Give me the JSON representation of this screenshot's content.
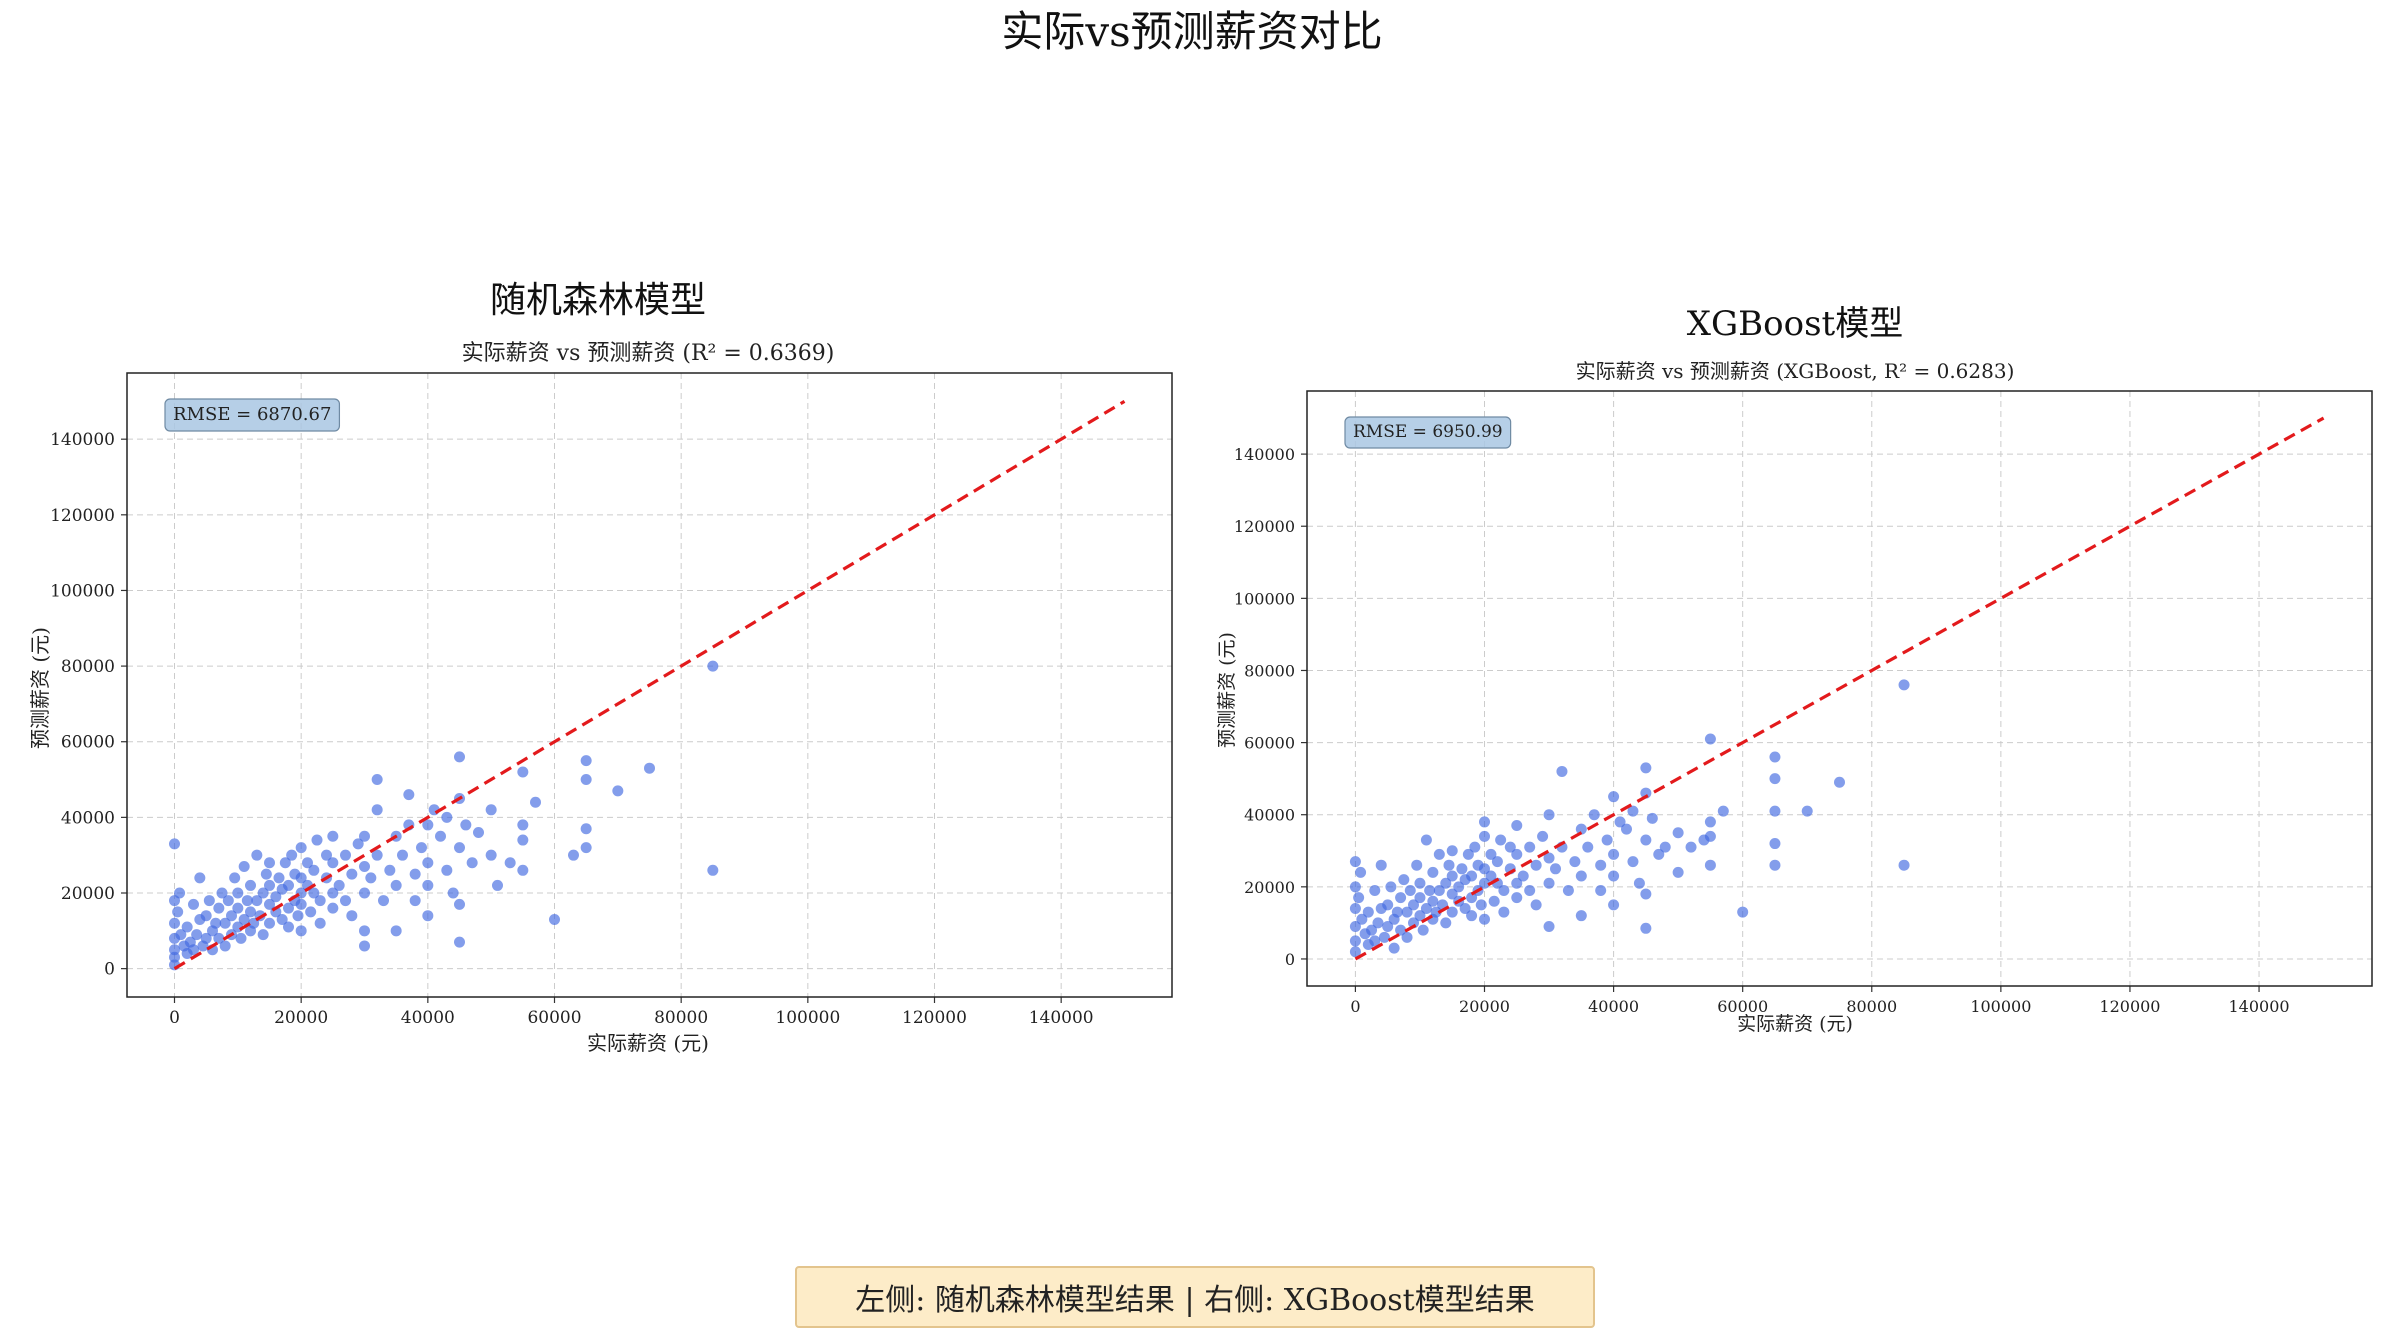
{
  "figure": {
    "title": "实际vs预测薪资对比",
    "footer": "左侧: 随机森林模型结果 | 右侧: XGBoost模型结果"
  },
  "chart_data": [
    {
      "type": "scatter",
      "title": "随机森林模型",
      "subtitle": "实际薪资 vs 预测薪资 (R² = 0.6369)",
      "xlabel": "实际薪资 (元)",
      "ylabel": "预测薪资 (元)",
      "xlim": [
        -7500,
        157500
      ],
      "ylim": [
        -7500,
        157500
      ],
      "xticks": [
        0,
        20000,
        40000,
        60000,
        80000,
        100000,
        120000,
        140000
      ],
      "yticks": [
        0,
        20000,
        40000,
        60000,
        80000,
        100000,
        120000,
        140000
      ],
      "grid": true,
      "annotation": "RMSE = 6870.67",
      "point_color": "#4169e1",
      "reference_line": {
        "from": [
          0,
          0
        ],
        "to": [
          150000,
          150000
        ],
        "color": "#e31a1c",
        "style": "dashed"
      },
      "points": [
        [
          0,
          33000
        ],
        [
          0,
          18000
        ],
        [
          0,
          12000
        ],
        [
          0,
          8000
        ],
        [
          0,
          5000
        ],
        [
          0,
          3000
        ],
        [
          0,
          1000
        ],
        [
          500,
          15000
        ],
        [
          800,
          20000
        ],
        [
          1000,
          9000
        ],
        [
          1500,
          6000
        ],
        [
          2000,
          4000
        ],
        [
          2000,
          11000
        ],
        [
          2500,
          7000
        ],
        [
          3000,
          5000
        ],
        [
          3000,
          17000
        ],
        [
          3500,
          9000
        ],
        [
          4000,
          24000
        ],
        [
          4000,
          13000
        ],
        [
          4500,
          6000
        ],
        [
          5000,
          8000
        ],
        [
          5000,
          14000
        ],
        [
          5500,
          18000
        ],
        [
          6000,
          10000
        ],
        [
          6000,
          5000
        ],
        [
          6500,
          12000
        ],
        [
          7000,
          16000
        ],
        [
          7000,
          8000
        ],
        [
          7500,
          20000
        ],
        [
          8000,
          12000
        ],
        [
          8000,
          6000
        ],
        [
          8500,
          18000
        ],
        [
          9000,
          14000
        ],
        [
          9000,
          9000
        ],
        [
          9500,
          24000
        ],
        [
          10000,
          16000
        ],
        [
          10000,
          11000
        ],
        [
          10000,
          20000
        ],
        [
          10500,
          8000
        ],
        [
          11000,
          13000
        ],
        [
          11000,
          27000
        ],
        [
          11500,
          18000
        ],
        [
          12000,
          15000
        ],
        [
          12000,
          10000
        ],
        [
          12000,
          22000
        ],
        [
          12500,
          12000
        ],
        [
          13000,
          18000
        ],
        [
          13000,
          30000
        ],
        [
          13500,
          14000
        ],
        [
          14000,
          20000
        ],
        [
          14000,
          9000
        ],
        [
          14500,
          25000
        ],
        [
          15000,
          17000
        ],
        [
          15000,
          12000
        ],
        [
          15000,
          22000
        ],
        [
          15000,
          28000
        ],
        [
          16000,
          15000
        ],
        [
          16000,
          19000
        ],
        [
          16500,
          24000
        ],
        [
          17000,
          13000
        ],
        [
          17000,
          21000
        ],
        [
          17500,
          28000
        ],
        [
          18000,
          16000
        ],
        [
          18000,
          11000
        ],
        [
          18000,
          22000
        ],
        [
          18500,
          30000
        ],
        [
          19000,
          18000
        ],
        [
          19000,
          25000
        ],
        [
          19500,
          14000
        ],
        [
          20000,
          20000
        ],
        [
          20000,
          10000
        ],
        [
          20000,
          24000
        ],
        [
          20000,
          32000
        ],
        [
          20000,
          17000
        ],
        [
          21000,
          22000
        ],
        [
          21000,
          28000
        ],
        [
          21500,
          15000
        ],
        [
          22000,
          20000
        ],
        [
          22000,
          26000
        ],
        [
          22500,
          34000
        ],
        [
          23000,
          18000
        ],
        [
          23000,
          12000
        ],
        [
          24000,
          24000
        ],
        [
          24000,
          30000
        ],
        [
          25000,
          20000
        ],
        [
          25000,
          16000
        ],
        [
          25000,
          28000
        ],
        [
          25000,
          35000
        ],
        [
          26000,
          22000
        ],
        [
          27000,
          18000
        ],
        [
          27000,
          30000
        ],
        [
          28000,
          25000
        ],
        [
          28000,
          14000
        ],
        [
          29000,
          33000
        ],
        [
          30000,
          20000
        ],
        [
          30000,
          27000
        ],
        [
          30000,
          10000
        ],
        [
          30000,
          35000
        ],
        [
          30000,
          6000
        ],
        [
          31000,
          24000
        ],
        [
          32000,
          42000
        ],
        [
          32000,
          30000
        ],
        [
          32000,
          50000
        ],
        [
          33000,
          18000
        ],
        [
          34000,
          26000
        ],
        [
          35000,
          35000
        ],
        [
          35000,
          10000
        ],
        [
          35000,
          22000
        ],
        [
          36000,
          30000
        ],
        [
          37000,
          46000
        ],
        [
          37000,
          38000
        ],
        [
          38000,
          25000
        ],
        [
          38000,
          18000
        ],
        [
          39000,
          32000
        ],
        [
          40000,
          28000
        ],
        [
          40000,
          22000
        ],
        [
          40000,
          38000
        ],
        [
          40000,
          14000
        ],
        [
          41000,
          42000
        ],
        [
          42000,
          35000
        ],
        [
          43000,
          26000
        ],
        [
          43000,
          40000
        ],
        [
          44000,
          20000
        ],
        [
          45000,
          56000
        ],
        [
          45000,
          45000
        ],
        [
          45000,
          32000
        ],
        [
          45000,
          17000
        ],
        [
          45000,
          7000
        ],
        [
          46000,
          38000
        ],
        [
          47000,
          28000
        ],
        [
          48000,
          36000
        ],
        [
          50000,
          42000
        ],
        [
          50000,
          30000
        ],
        [
          51000,
          22000
        ],
        [
          53000,
          28000
        ],
        [
          55000,
          52000
        ],
        [
          55000,
          38000
        ],
        [
          55000,
          34000
        ],
        [
          55000,
          26000
        ],
        [
          57000,
          44000
        ],
        [
          60000,
          13000
        ],
        [
          63000,
          30000
        ],
        [
          65000,
          55000
        ],
        [
          65000,
          50000
        ],
        [
          65000,
          37000
        ],
        [
          65000,
          32000
        ],
        [
          70000,
          47000
        ],
        [
          75000,
          53000
        ],
        [
          85000,
          80000
        ],
        [
          85000,
          26000
        ]
      ]
    },
    {
      "type": "scatter",
      "title": "XGBoost模型",
      "subtitle": "实际薪资 vs 预测薪资 (XGBoost, R² = 0.6283)",
      "xlabel": "实际薪资 (元)",
      "ylabel": "预测薪资 (元)",
      "xlim": [
        -7500,
        157500
      ],
      "ylim": [
        -7500,
        157500
      ],
      "xticks": [
        0,
        20000,
        40000,
        60000,
        80000,
        100000,
        120000,
        140000
      ],
      "yticks": [
        0,
        20000,
        40000,
        60000,
        80000,
        100000,
        120000,
        140000
      ],
      "grid": true,
      "annotation": "RMSE = 6950.99",
      "point_color": "#4169e1",
      "reference_line": {
        "from": [
          0,
          0
        ],
        "to": [
          150000,
          150000
        ],
        "color": "#e31a1c",
        "style": "dashed"
      },
      "points": [
        [
          0,
          27000
        ],
        [
          0,
          20000
        ],
        [
          0,
          14000
        ],
        [
          0,
          9000
        ],
        [
          0,
          5000
        ],
        [
          0,
          2000
        ],
        [
          500,
          17000
        ],
        [
          800,
          24000
        ],
        [
          1000,
          11000
        ],
        [
          1500,
          7000
        ],
        [
          2000,
          4000
        ],
        [
          2000,
          13000
        ],
        [
          2500,
          8000
        ],
        [
          3000,
          5000
        ],
        [
          3000,
          19000
        ],
        [
          3500,
          10000
        ],
        [
          4000,
          26000
        ],
        [
          4000,
          14000
        ],
        [
          4500,
          6000
        ],
        [
          5000,
          9000
        ],
        [
          5000,
          15000
        ],
        [
          5500,
          20000
        ],
        [
          6000,
          11000
        ],
        [
          6000,
          3000
        ],
        [
          6500,
          13000
        ],
        [
          7000,
          17000
        ],
        [
          7000,
          8000
        ],
        [
          7500,
          22000
        ],
        [
          8000,
          13000
        ],
        [
          8000,
          6000
        ],
        [
          8500,
          19000
        ],
        [
          9000,
          15000
        ],
        [
          9000,
          10000
        ],
        [
          9500,
          26000
        ],
        [
          10000,
          17000
        ],
        [
          10000,
          12000
        ],
        [
          10000,
          21000
        ],
        [
          10500,
          8000
        ],
        [
          11000,
          14000
        ],
        [
          11000,
          33000
        ],
        [
          11500,
          19000
        ],
        [
          12000,
          16000
        ],
        [
          12000,
          11000
        ],
        [
          12000,
          24000
        ],
        [
          12500,
          13000
        ],
        [
          13000,
          19000
        ],
        [
          13000,
          29000
        ],
        [
          13500,
          15000
        ],
        [
          14000,
          21000
        ],
        [
          14000,
          10000
        ],
        [
          14500,
          26000
        ],
        [
          15000,
          18000
        ],
        [
          15000,
          13000
        ],
        [
          15000,
          23000
        ],
        [
          15000,
          30000
        ],
        [
          16000,
          16000
        ],
        [
          16000,
          20000
        ],
        [
          16500,
          25000
        ],
        [
          17000,
          14000
        ],
        [
          17000,
          22000
        ],
        [
          17500,
          29000
        ],
        [
          18000,
          17000
        ],
        [
          18000,
          12000
        ],
        [
          18000,
          23000
        ],
        [
          18500,
          31000
        ],
        [
          19000,
          19000
        ],
        [
          19000,
          26000
        ],
        [
          19500,
          15000
        ],
        [
          20000,
          21000
        ],
        [
          20000,
          11000
        ],
        [
          20000,
          25000
        ],
        [
          20000,
          34000
        ],
        [
          20000,
          38000
        ],
        [
          21000,
          23000
        ],
        [
          21000,
          29000
        ],
        [
          21500,
          16000
        ],
        [
          22000,
          21000
        ],
        [
          22000,
          27000
        ],
        [
          22500,
          33000
        ],
        [
          23000,
          19000
        ],
        [
          23000,
          13000
        ],
        [
          24000,
          25000
        ],
        [
          24000,
          31000
        ],
        [
          25000,
          21000
        ],
        [
          25000,
          17000
        ],
        [
          25000,
          29000
        ],
        [
          25000,
          37000
        ],
        [
          26000,
          23000
        ],
        [
          27000,
          19000
        ],
        [
          27000,
          31000
        ],
        [
          28000,
          26000
        ],
        [
          28000,
          15000
        ],
        [
          29000,
          34000
        ],
        [
          30000,
          21000
        ],
        [
          30000,
          28000
        ],
        [
          30000,
          9000
        ],
        [
          30000,
          40000
        ],
        [
          31000,
          25000
        ],
        [
          32000,
          52000
        ],
        [
          32000,
          31000
        ],
        [
          33000,
          19000
        ],
        [
          34000,
          27000
        ],
        [
          35000,
          36000
        ],
        [
          35000,
          12000
        ],
        [
          35000,
          23000
        ],
        [
          36000,
          31000
        ],
        [
          37000,
          40000
        ],
        [
          38000,
          26000
        ],
        [
          38000,
          19000
        ],
        [
          39000,
          33000
        ],
        [
          40000,
          29000
        ],
        [
          40000,
          23000
        ],
        [
          40000,
          45000
        ],
        [
          40000,
          15000
        ],
        [
          41000,
          38000
        ],
        [
          42000,
          36000
        ],
        [
          43000,
          27000
        ],
        [
          43000,
          41000
        ],
        [
          44000,
          21000
        ],
        [
          45000,
          53000
        ],
        [
          45000,
          46000
        ],
        [
          45000,
          33000
        ],
        [
          45000,
          18000
        ],
        [
          45000,
          8500
        ],
        [
          46000,
          39000
        ],
        [
          47000,
          29000
        ],
        [
          48000,
          31000
        ],
        [
          50000,
          35000
        ],
        [
          50000,
          24000
        ],
        [
          52000,
          31000
        ],
        [
          54000,
          33000
        ],
        [
          55000,
          61000
        ],
        [
          55000,
          38000
        ],
        [
          55000,
          34000
        ],
        [
          55000,
          26000
        ],
        [
          57000,
          41000
        ],
        [
          60000,
          13000
        ],
        [
          65000,
          56000
        ],
        [
          65000,
          50000
        ],
        [
          65000,
          41000
        ],
        [
          65000,
          32000
        ],
        [
          65000,
          26000
        ],
        [
          70000,
          41000
        ],
        [
          75000,
          49000
        ],
        [
          85000,
          76000
        ],
        [
          85000,
          26000
        ]
      ]
    }
  ]
}
